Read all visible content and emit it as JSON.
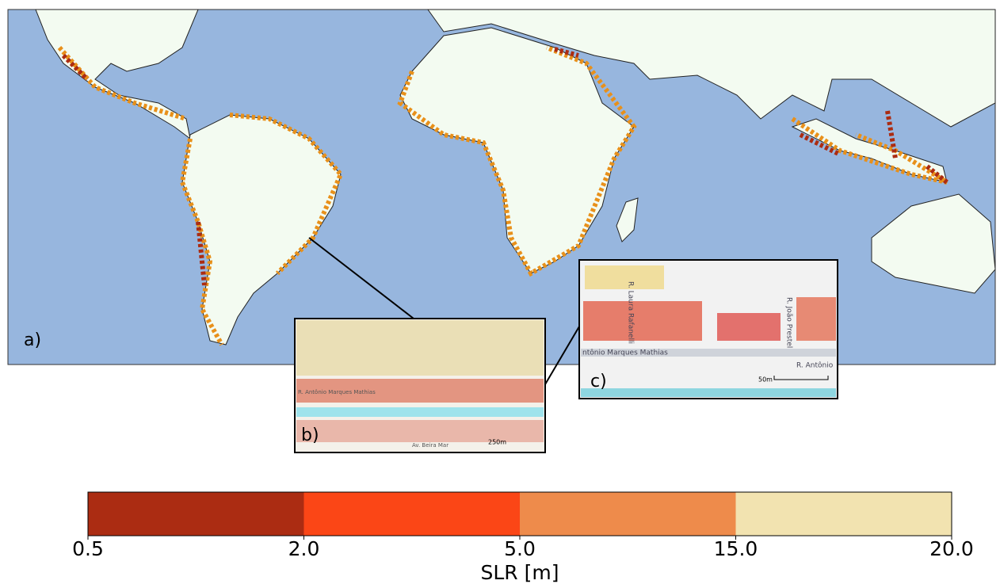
{
  "panels": {
    "a": "a)",
    "b": "b)",
    "c": "c)"
  },
  "inset_b": {
    "scale": "250m",
    "streets": [
      "R. Antônio Marques Mathias",
      "Av. Beira Mar"
    ]
  },
  "inset_c": {
    "scale": "50m",
    "streets": [
      "R. Laura Rafanelli",
      "R. João Prestel",
      "ntônio Marques Mathias",
      "R. Antônio"
    ]
  },
  "colorbar": {
    "label": "SLR [m]",
    "ticks": [
      {
        "value": 0.5,
        "label": "0.5"
      },
      {
        "value": 2,
        "label": "2.0"
      },
      {
        "value": 5,
        "label": "5.0"
      },
      {
        "value": 15,
        "label": "15.0"
      },
      {
        "value": 20,
        "label": "20.0"
      }
    ],
    "colors": [
      "#ab2c12",
      "#fb4616",
      "#ee8b4b",
      "#f2e3b0"
    ]
  }
}
